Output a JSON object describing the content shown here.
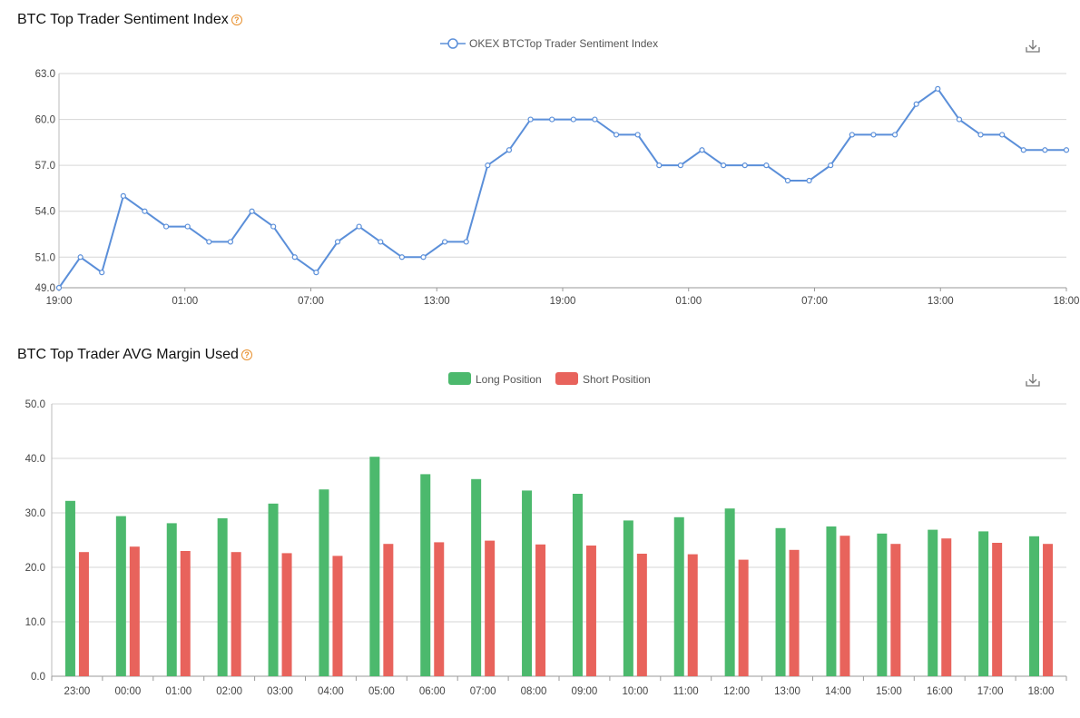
{
  "chart_data": [
    {
      "type": "line",
      "title": "BTC Top Trader Sentiment Index",
      "help_icon": "question-circle-icon",
      "download_icon": "download-icon",
      "series": [
        {
          "name": "OKEX BTCTop Trader Sentiment Index",
          "color": "#5b8fd9",
          "values": [
            49,
            51,
            50,
            55,
            54,
            53,
            53,
            52,
            52,
            54,
            53,
            51,
            50,
            52,
            53,
            52,
            51,
            51,
            52,
            52,
            57,
            58,
            60,
            60,
            60,
            60,
            59,
            59,
            57,
            57,
            58,
            57,
            57,
            57,
            56,
            56,
            57,
            59,
            59,
            59,
            61,
            62,
            60,
            59,
            59,
            58,
            58,
            58
          ]
        }
      ],
      "x_tick_labels": [
        "19:00",
        "01:00",
        "07:00",
        "13:00",
        "19:00",
        "01:00",
        "07:00",
        "13:00",
        "18:00"
      ],
      "y_tick_labels": [
        "49.0",
        "51.0",
        "54.0",
        "57.0",
        "60.0",
        "63.0"
      ],
      "ylim": [
        49,
        63
      ],
      "grid": true,
      "legend": "top-center"
    },
    {
      "type": "bar",
      "title": "BTC Top Trader AVG Margin Used",
      "help_icon": "question-circle-icon",
      "download_icon": "download-icon",
      "categories": [
        "23:00",
        "00:00",
        "01:00",
        "02:00",
        "03:00",
        "04:00",
        "05:00",
        "06:00",
        "07:00",
        "08:00",
        "09:00",
        "10:00",
        "11:00",
        "12:00",
        "13:00",
        "14:00",
        "15:00",
        "16:00",
        "17:00",
        "18:00"
      ],
      "series": [
        {
          "name": "Long Position",
          "color": "#4cb96d",
          "values": [
            32.2,
            29.4,
            28.1,
            29.0,
            31.7,
            34.3,
            40.3,
            37.1,
            36.2,
            34.1,
            33.5,
            28.6,
            29.2,
            30.8,
            27.2,
            27.5,
            26.2,
            26.9,
            26.6,
            25.7
          ]
        },
        {
          "name": "Short Position",
          "color": "#e8635c",
          "values": [
            22.8,
            23.8,
            23.0,
            22.8,
            22.6,
            22.1,
            24.3,
            24.6,
            24.9,
            24.2,
            24.0,
            22.5,
            22.4,
            21.4,
            23.2,
            25.8,
            24.3,
            25.3,
            24.5,
            24.3
          ]
        }
      ],
      "y_tick_labels": [
        "0.0",
        "10.0",
        "20.0",
        "30.0",
        "40.0",
        "50.0"
      ],
      "ylim": [
        0,
        50
      ],
      "grid": true,
      "legend": "top-center"
    }
  ]
}
